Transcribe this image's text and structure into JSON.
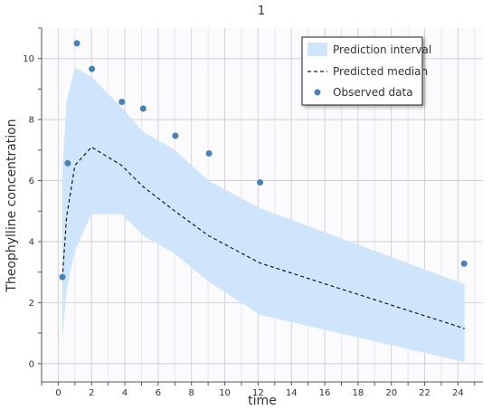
{
  "chart_data": {
    "type": "line",
    "title": "1",
    "xlabel": "time",
    "ylabel": "Theophylline concentration",
    "xlim": [
      -1,
      25.5
    ],
    "ylim": [
      -0.6,
      11
    ],
    "x_ticks": [
      0,
      2,
      4,
      6,
      8,
      10,
      12,
      14,
      16,
      18,
      20,
      22,
      24
    ],
    "y_ticks": [
      0,
      2,
      4,
      6,
      8,
      10
    ],
    "grid": true,
    "legend_position": "top-right",
    "colors": {
      "interval": "#cfe5fb",
      "median": "#1a1a1a",
      "observed": "#4682b4"
    },
    "series": [
      {
        "name": "Prediction interval",
        "kind": "band",
        "x": [
          0.25,
          0.5,
          1,
          2,
          3.8,
          5.1,
          7,
          9,
          12.1,
          24.4
        ],
        "lower": [
          0.8,
          2.4,
          3.7,
          4.9,
          4.9,
          4.2,
          3.6,
          2.7,
          1.6,
          0.05
        ],
        "upper": [
          6.3,
          8.6,
          9.7,
          9.4,
          8.4,
          7.6,
          7.0,
          6.0,
          5.1,
          2.6
        ]
      },
      {
        "name": "Predicted median",
        "kind": "line",
        "x": [
          0.25,
          0.5,
          1,
          2,
          3.8,
          5.1,
          7,
          9,
          12.1,
          24.4
        ],
        "y": [
          2.8,
          4.8,
          6.5,
          7.1,
          6.5,
          5.8,
          5.0,
          4.2,
          3.3,
          1.15
        ]
      },
      {
        "name": "Observed data",
        "kind": "scatter",
        "x": [
          0.25,
          0.57,
          1.12,
          2.02,
          3.82,
          5.1,
          7.03,
          9.05,
          12.12,
          24.37
        ],
        "y": [
          2.84,
          6.57,
          10.5,
          9.66,
          8.58,
          8.36,
          7.47,
          6.89,
          5.94,
          3.28
        ]
      }
    ]
  }
}
